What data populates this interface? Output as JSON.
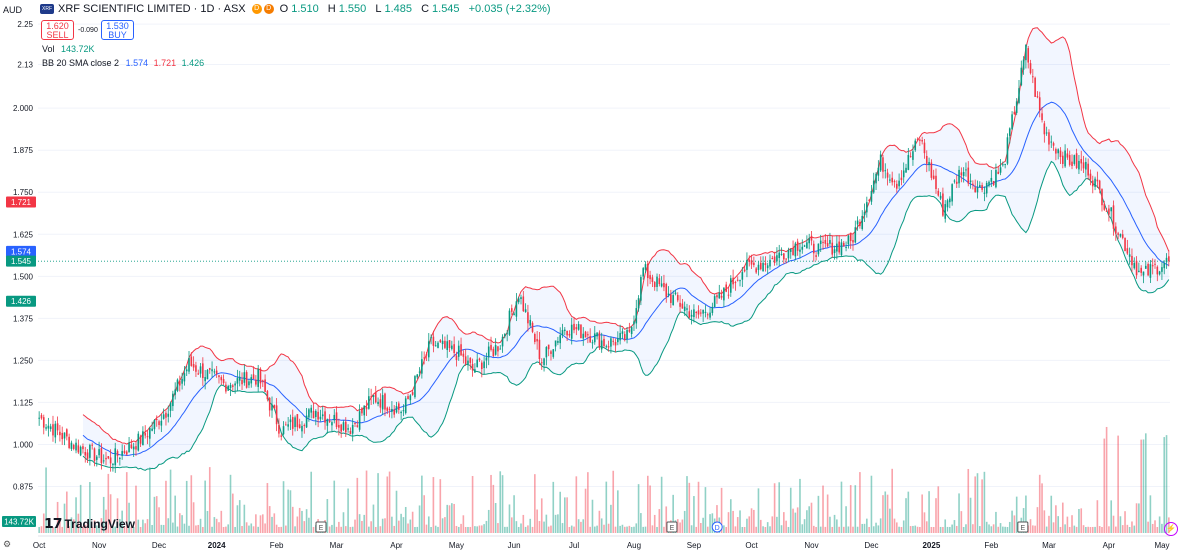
{
  "header": {
    "currency": "AUD",
    "logo_text": "XRF",
    "title": "XRF SCIENTIFIC LIMITED · 1D · ASX",
    "badges": [
      {
        "text": "D",
        "color": "#ff9800"
      },
      {
        "text": "D",
        "color": "#f57c00"
      }
    ],
    "ohlc": {
      "o_label": "O",
      "o": "1.510",
      "h_label": "H",
      "h": "1.550",
      "l_label": "L",
      "l": "1.485",
      "c_label": "C",
      "c": "1.545",
      "change": "+0.035 (+2.32%)"
    }
  },
  "trade": {
    "sell_price": "1.620",
    "sell_label": "SELL",
    "spread": "-0.090",
    "buy_price": "1.530",
    "buy_label": "BUY"
  },
  "indicators": {
    "vol_label": "Vol",
    "vol_value": "143.72K",
    "bb_label": "BB 20 SMA close 2",
    "bb_basis": "1.574",
    "bb_upper": "1.721",
    "bb_lower": "1.426"
  },
  "branding": {
    "name": "TradingView"
  },
  "colors": {
    "up": "#089981",
    "down": "#f23645",
    "basis": "#2962ff",
    "upper": "#f23645",
    "lower": "#089981",
    "band_fill": "#2962ff"
  },
  "chart_data": {
    "type": "candlestick",
    "y_ticks": [
      0.875,
      1.0,
      1.125,
      1.25,
      1.375,
      1.5,
      1.625,
      1.75,
      1.875,
      2.0,
      2.13,
      2.25
    ],
    "y_tick_labels": [
      "0.875",
      "1.000",
      "1.125",
      "1.250",
      "1.375",
      "1.500",
      "1.625",
      "1.750",
      "1.875",
      "2.000",
      "2.13",
      "2.25"
    ],
    "ylim": [
      0.82,
      2.28
    ],
    "x_labels": [
      "Oct",
      "Nov",
      "Dec",
      "2024",
      "Feb",
      "Mar",
      "Apr",
      "May",
      "Jun",
      "Jul",
      "Aug",
      "Sep",
      "Oct",
      "Nov",
      "Dec",
      "2025",
      "Feb",
      "Mar",
      "Apr",
      "May"
    ],
    "price_labels": [
      {
        "text": "1.721",
        "value": 1.721,
        "color": "#f23645"
      },
      {
        "text": "1.574",
        "value": 1.574,
        "color": "#2962ff"
      },
      {
        "text": "1.545",
        "value": 1.545,
        "color": "#089981"
      },
      {
        "text": "1.426",
        "value": 1.426,
        "color": "#089981"
      }
    ],
    "volume_label": "143.72K",
    "event_markers": [
      "E",
      "E",
      "D",
      "E"
    ],
    "price_path": [
      [
        0,
        1.08
      ],
      [
        15,
        1.0
      ],
      [
        30,
        0.95
      ],
      [
        45,
        1.02
      ],
      [
        55,
        1.1
      ],
      [
        65,
        1.24
      ],
      [
        80,
        1.18
      ],
      [
        95,
        1.2
      ],
      [
        105,
        1.04
      ],
      [
        120,
        1.1
      ],
      [
        135,
        1.05
      ],
      [
        145,
        1.14
      ],
      [
        158,
        1.1
      ],
      [
        170,
        1.3
      ],
      [
        182,
        1.27
      ],
      [
        188,
        1.22
      ],
      [
        200,
        1.3
      ],
      [
        208,
        1.45
      ],
      [
        218,
        1.25
      ],
      [
        228,
        1.35
      ],
      [
        238,
        1.33
      ],
      [
        246,
        1.3
      ],
      [
        256,
        1.32
      ],
      [
        262,
        1.52
      ],
      [
        272,
        1.45
      ],
      [
        285,
        1.38
      ],
      [
        295,
        1.43
      ],
      [
        305,
        1.52
      ],
      [
        318,
        1.55
      ],
      [
        330,
        1.6
      ],
      [
        338,
        1.58
      ],
      [
        352,
        1.6
      ],
      [
        365,
        1.84
      ],
      [
        372,
        1.78
      ],
      [
        382,
        1.91
      ],
      [
        392,
        1.7
      ],
      [
        400,
        1.82
      ],
      [
        408,
        1.76
      ],
      [
        418,
        1.82
      ],
      [
        428,
        2.17
      ],
      [
        436,
        1.93
      ],
      [
        445,
        1.85
      ],
      [
        455,
        1.82
      ],
      [
        465,
        1.68
      ],
      [
        472,
        1.58
      ],
      [
        478,
        1.5
      ],
      [
        485,
        1.53
      ],
      [
        490,
        1.545
      ]
    ],
    "sma_period": 20,
    "bb_stddev": 2
  }
}
